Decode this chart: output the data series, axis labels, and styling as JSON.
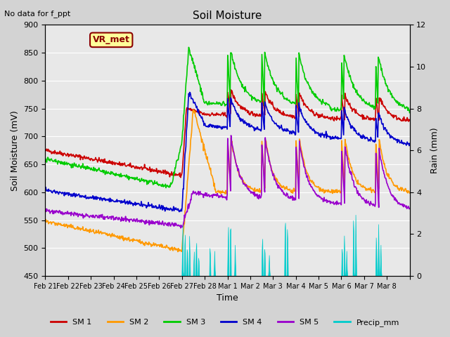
{
  "title": "Soil Moisture",
  "note": "No data for f_ppt",
  "ylabel_left": "Soil Moisture (mV)",
  "ylabel_right": "Rain (mm)",
  "xlabel": "Time",
  "ylim_left": [
    450,
    900
  ],
  "ylim_right": [
    0,
    12
  ],
  "background_color": "#d3d3d3",
  "plot_bg_color": "#e8e8e8",
  "legend_label": "VR_met",
  "series_colors": {
    "SM1": "#cc0000",
    "SM2": "#ff9900",
    "SM3": "#00cc00",
    "SM4": "#0000cc",
    "SM5": "#9900cc",
    "Precip": "#00cccc"
  },
  "xtick_positions": [
    0,
    1,
    2,
    3,
    4,
    5,
    6,
    7,
    8,
    9,
    10,
    11,
    12,
    13,
    14,
    15,
    16
  ],
  "xtick_labels": [
    "Feb 21",
    "Feb 22",
    "Feb 23",
    "Feb 24",
    "Feb 25",
    "Feb 26",
    "Feb 27",
    "Feb 28",
    "Mar 1",
    "Mar 2",
    "Mar 3",
    "Mar 4",
    "Mar 5",
    "Mar 6",
    "Mar 7",
    "Mar 8",
    ""
  ],
  "ytick_left": [
    450,
    500,
    550,
    600,
    650,
    700,
    750,
    800,
    850,
    900
  ],
  "ytick_right": [
    0,
    2,
    4,
    6,
    8,
    10,
    12
  ],
  "n_days": 16,
  "pts_per_day": 48
}
